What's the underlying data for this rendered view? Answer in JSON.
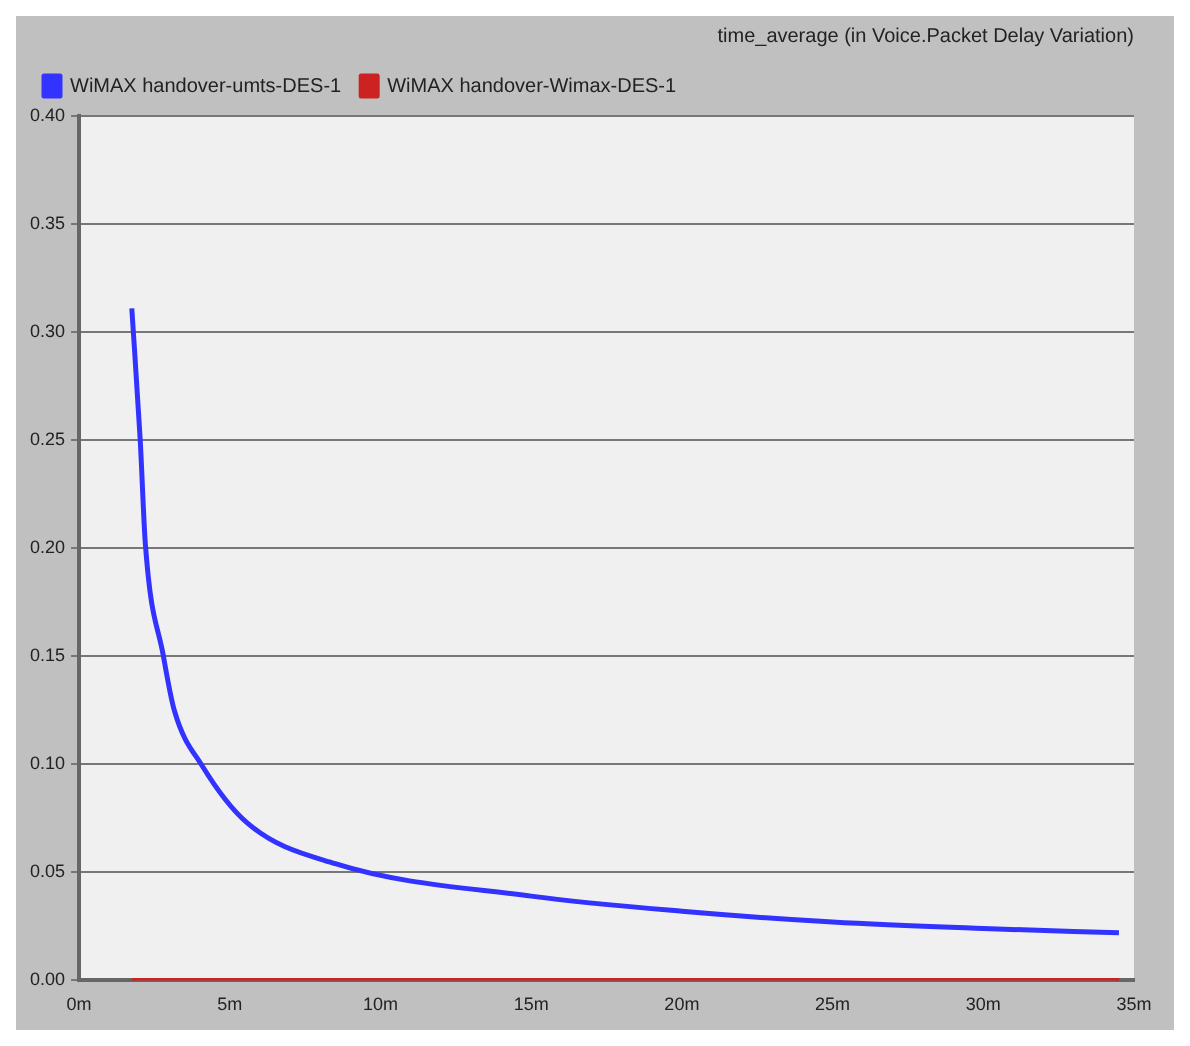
{
  "chart_data": {
    "type": "line",
    "title": "time_average (in Voice.Packet Delay Variation)",
    "xlim": [
      0,
      35
    ],
    "xticks": [
      {
        "value": 0,
        "label": "0m"
      },
      {
        "value": 5,
        "label": "5m"
      },
      {
        "value": 10,
        "label": "10m"
      },
      {
        "value": 15,
        "label": "15m"
      },
      {
        "value": 20,
        "label": "20m"
      },
      {
        "value": 25,
        "label": "25m"
      },
      {
        "value": 30,
        "label": "30m"
      },
      {
        "value": 35,
        "label": "35m"
      }
    ],
    "ylim": [
      0,
      0.4
    ],
    "yticks": [
      {
        "value": 0,
        "label": "0.00"
      },
      {
        "value": 0.05,
        "label": "0.05"
      },
      {
        "value": 0.1,
        "label": "0.10"
      },
      {
        "value": 0.15,
        "label": "0.15"
      },
      {
        "value": 0.2,
        "label": "0.20"
      },
      {
        "value": 0.25,
        "label": "0.25"
      },
      {
        "value": 0.3,
        "label": "0.30"
      },
      {
        "value": 0.35,
        "label": "0.35"
      },
      {
        "value": 0.4,
        "label": "0.40"
      }
    ],
    "grid": "y",
    "legend": "top left",
    "marker": "none",
    "line_style": "solid",
    "series": [
      {
        "name": "WiMAX handover-umts-DES-1",
        "color": "#3333ff",
        "x": [
          1.75,
          2.03,
          2.2,
          2.8,
          3.16,
          4.1,
          5.57,
          8.5,
          15,
          20,
          25,
          30,
          34.5
        ],
        "values": [
          0.311,
          0.25,
          0.202,
          0.15,
          0.125,
          0.099,
          0.073,
          0.054,
          0.039,
          0.032,
          0.027,
          0.024,
          0.022
        ]
      },
      {
        "name": "WiMAX handover-Wimax-DES-1",
        "color": "#cc2222",
        "x": [
          1.75,
          34.5
        ],
        "values": [
          0,
          0
        ]
      }
    ]
  }
}
